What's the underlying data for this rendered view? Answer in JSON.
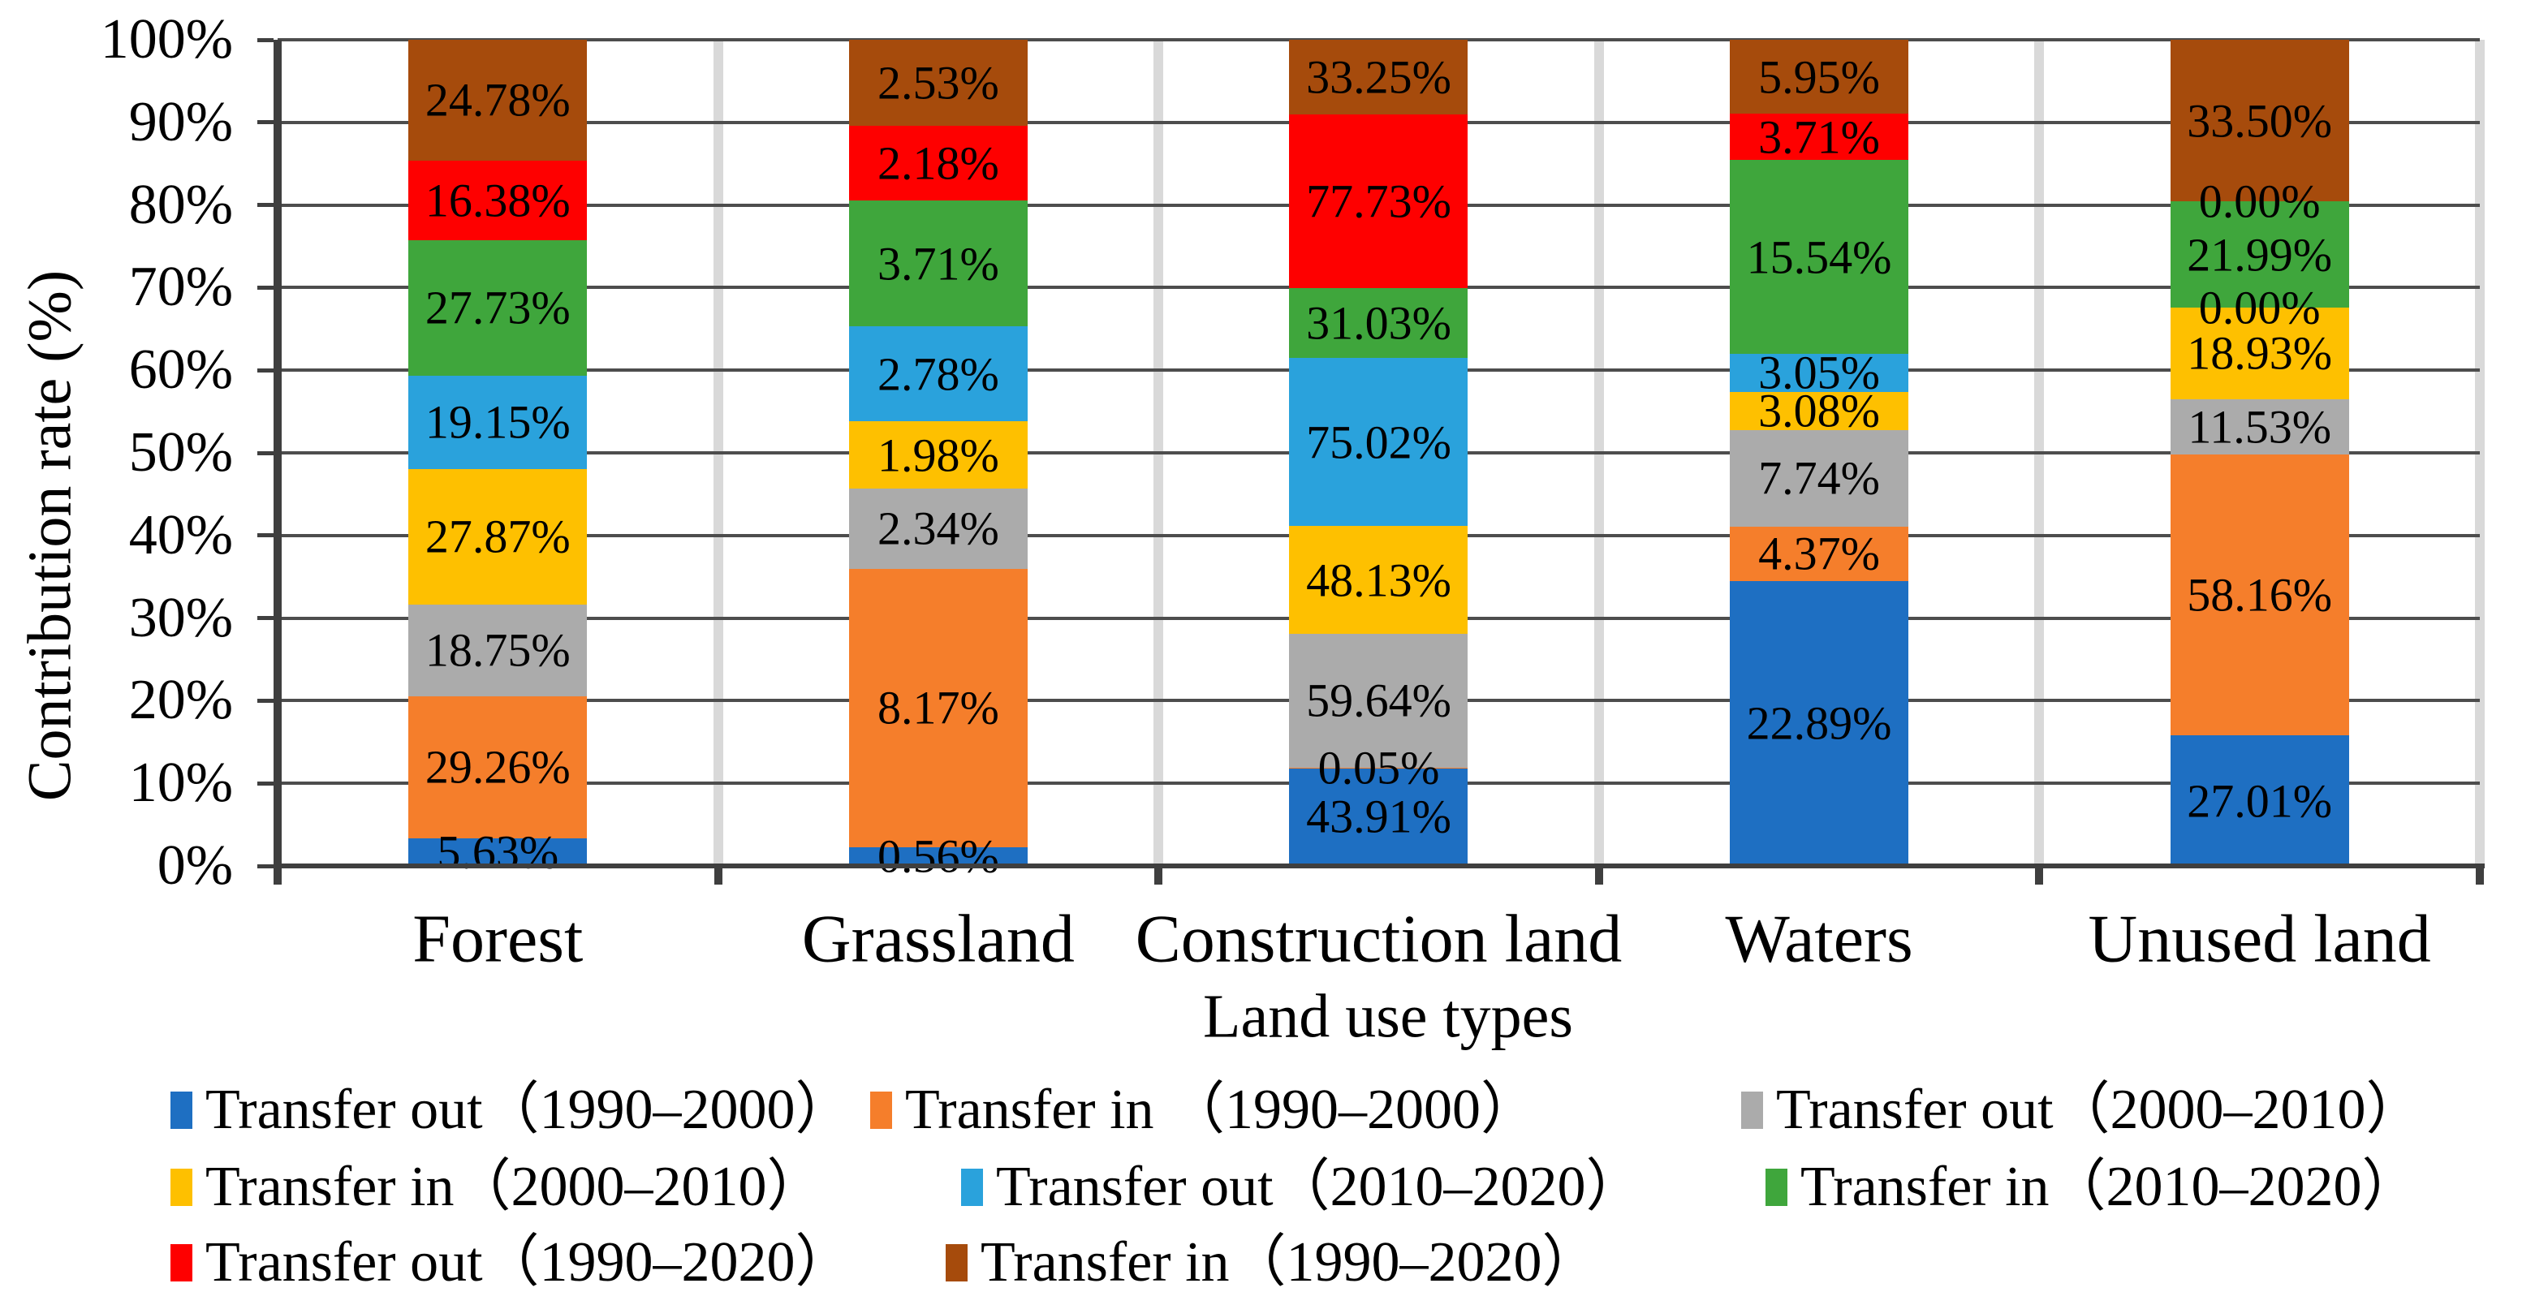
{
  "chart_data": {
    "type": "bar",
    "stacking": "percent-normalized-100",
    "title": "",
    "xlabel": "Land use types",
    "ylabel": "Contribution rate (%)",
    "categories": [
      "Forest",
      "Grassland",
      "Construction land",
      "Waters",
      "Unused land"
    ],
    "y_tick_labels": [
      "0%",
      "10%",
      "20%",
      "30%",
      "40%",
      "50%",
      "60%",
      "70%",
      "80%",
      "90%",
      "100%"
    ],
    "ylim": [
      "0%",
      "100%"
    ],
    "grid": true,
    "legend_position": "bottom",
    "value_suffix": "%",
    "series": [
      {
        "name": "Transfer out（1990–2000）",
        "color": "#1e6fc2",
        "values": [
          5.63,
          0.56,
          43.91,
          22.89,
          27.01
        ]
      },
      {
        "name": "Transfer in （1990–2000）",
        "color": "#f57e2b",
        "values": [
          29.26,
          8.17,
          0.05,
          4.37,
          58.16
        ]
      },
      {
        "name": "Transfer out（2000–2010）",
        "color": "#ababab",
        "values": [
          18.75,
          2.34,
          59.64,
          7.74,
          11.53
        ]
      },
      {
        "name": "Transfer in（2000–2010）",
        "color": "#fec000",
        "values": [
          27.87,
          1.98,
          48.13,
          3.08,
          18.93
        ]
      },
      {
        "name": "Transfer out（2010–2020）",
        "color": "#2aa2dc",
        "values": [
          19.15,
          2.78,
          75.02,
          3.05,
          0.0
        ]
      },
      {
        "name": "Transfer in（2010–2020）",
        "color": "#3fa63c",
        "values": [
          27.73,
          3.71,
          31.03,
          15.54,
          21.99
        ]
      },
      {
        "name": "Transfer out（1990–2020）",
        "color": "#fe0000",
        "values": [
          16.38,
          2.18,
          77.73,
          3.71,
          0.0
        ]
      },
      {
        "name": "Transfer in（1990–2020）",
        "color": "#a64b0c",
        "values": [
          24.78,
          2.53,
          33.25,
          5.95,
          33.5
        ]
      }
    ],
    "colors": {
      "gridline": "#4d4d4d",
      "axis": "#3f3f3f",
      "category_separator": "#d9d9d9",
      "background": "#ffffff",
      "text": "#000000"
    }
  }
}
